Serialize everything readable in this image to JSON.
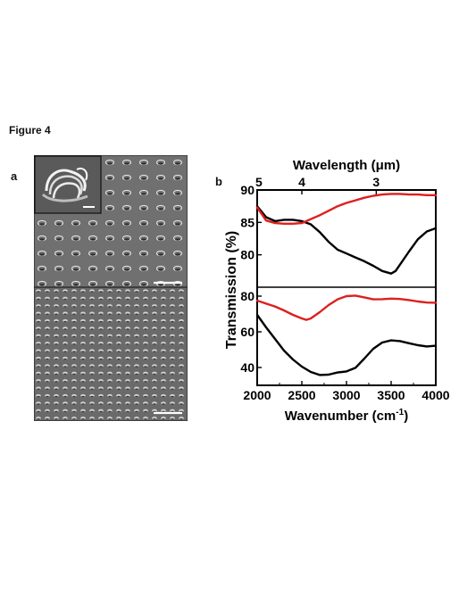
{
  "figure_title": "Figure 4",
  "panel_a_label": "a",
  "panel_b_label": "b",
  "chart_data": [
    {
      "type": "line",
      "panel": "top",
      "top_axis_label": "Wavelength (μm)",
      "top_ticks": [
        "5",
        "4",
        "3"
      ],
      "top_tick_wavelengths_um": [
        5,
        4,
        3
      ],
      "ylim": [
        75,
        90
      ],
      "yticks": [
        80,
        85,
        90
      ],
      "xlim": [
        2000,
        4000
      ],
      "series": [
        {
          "color": "#000000",
          "x": [
            2000,
            2100,
            2200,
            2300,
            2400,
            2500,
            2600,
            2700,
            2800,
            2900,
            3000,
            3100,
            3200,
            3300,
            3400,
            3500,
            3550,
            3600,
            3700,
            3800,
            3900,
            4000
          ],
          "y": [
            87.5,
            85.8,
            85.2,
            85.4,
            85.4,
            85.2,
            84.7,
            83.5,
            82.0,
            80.8,
            80.2,
            79.6,
            79.0,
            78.3,
            77.5,
            77.1,
            77.5,
            78.5,
            80.5,
            82.4,
            83.6,
            84.1
          ]
        },
        {
          "color": "#dd1f1f",
          "x": [
            2000,
            2100,
            2200,
            2300,
            2400,
            2500,
            2600,
            2700,
            2800,
            2900,
            3000,
            3100,
            3200,
            3300,
            3400,
            3500,
            3600,
            3700,
            3800,
            3900,
            4000
          ],
          "y": [
            87.3,
            85.3,
            84.9,
            84.8,
            84.8,
            84.9,
            85.5,
            86.1,
            86.8,
            87.5,
            88.0,
            88.4,
            88.8,
            89.1,
            89.3,
            89.4,
            89.4,
            89.3,
            89.3,
            89.2,
            89.2
          ]
        }
      ]
    },
    {
      "type": "line",
      "panel": "bottom",
      "xlabel": "Wavenumber (cm-1)",
      "xlabel_main": "Wavenumber (cm",
      "xlabel_sup": "-1",
      "xlabel_close": ")",
      "ylabel": "Transmission (%)",
      "xlim": [
        2000,
        4000
      ],
      "xticks": [
        2000,
        2500,
        3000,
        3500,
        4000
      ],
      "ylim": [
        30,
        85
      ],
      "yticks": [
        40,
        60,
        80
      ],
      "series": [
        {
          "color": "#000000",
          "x": [
            2000,
            2100,
            2200,
            2300,
            2400,
            2500,
            2600,
            2700,
            2800,
            2900,
            3000,
            3100,
            3200,
            3300,
            3400,
            3500,
            3600,
            3700,
            3800,
            3900,
            4000
          ],
          "y": [
            69.5,
            62.5,
            56.0,
            49.5,
            44.5,
            40.5,
            37.5,
            35.8,
            36.0,
            37.2,
            37.8,
            39.8,
            45.0,
            50.5,
            54.0,
            55.2,
            54.8,
            53.6,
            52.5,
            51.8,
            52.2
          ]
        },
        {
          "color": "#dd1f1f",
          "x": [
            2000,
            2100,
            2200,
            2300,
            2400,
            2500,
            2550,
            2600,
            2700,
            2800,
            2900,
            3000,
            3100,
            3200,
            3300,
            3400,
            3500,
            3600,
            3700,
            3800,
            3900,
            4000
          ],
          "y": [
            77.5,
            75.8,
            74.2,
            72.0,
            69.5,
            67.5,
            66.7,
            67.5,
            71.0,
            75.0,
            78.2,
            80.0,
            80.3,
            79.3,
            78.2,
            78.3,
            78.6,
            78.4,
            77.8,
            77.0,
            76.4,
            76.3
          ]
        }
      ]
    }
  ]
}
